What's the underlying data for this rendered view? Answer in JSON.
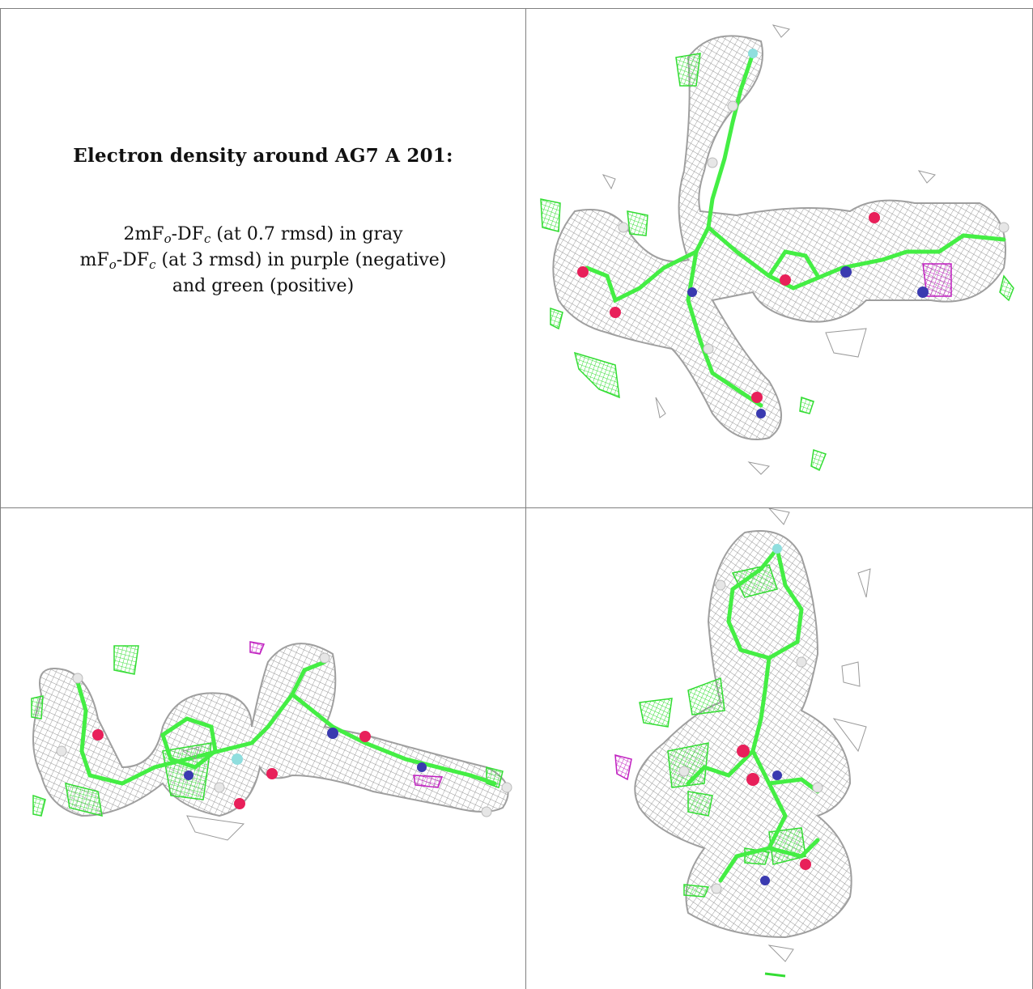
{
  "panel_text": {
    "heading": "Electron density around AG7 A 201:",
    "line1": {
      "a": "2mF",
      "a_sub": "o",
      "b": "-DF",
      "b_sub": "c",
      "rest": " (at 0.7 rmsd) in gray"
    },
    "line2": {
      "a": "mF",
      "a_sub": "o",
      "b": "-DF",
      "b_sub": "c",
      "rest": " (at 3 rmsd) in purple (negative)"
    },
    "line3": "and green (positive)"
  },
  "views": [
    {
      "name": "view-top-right"
    },
    {
      "name": "view-bottom-left"
    },
    {
      "name": "view-bottom-right"
    }
  ],
  "colors": {
    "mesh_gray": "#9a9a9a",
    "positive_green": "#33dd33",
    "negative_purple": "#c020c0",
    "bond_green": "#44ee44",
    "oxygen": "#e8205a",
    "nitrogen": "#3a3ab0",
    "fluorine": "#8fdede",
    "hydrogen": "#e6e6e6"
  }
}
